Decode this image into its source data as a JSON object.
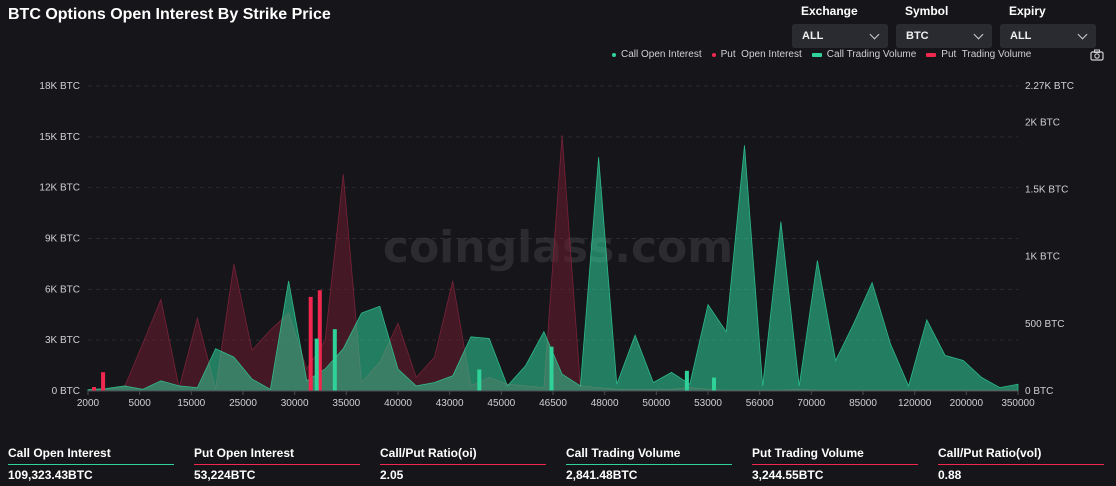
{
  "page": {
    "title": "BTC Options Open Interest By Strike Price",
    "watermark": "coinglass.com"
  },
  "filters": [
    {
      "label": "Exchange",
      "value": "ALL"
    },
    {
      "label": "Symbol",
      "value": "BTC"
    },
    {
      "label": "Expiry",
      "value": "ALL"
    }
  ],
  "legend": [
    {
      "label": "Call Open Interest",
      "color": "#2fd39a",
      "kind": "dot"
    },
    {
      "label": "Put  Open Interest",
      "color": "#f0284f",
      "kind": "dot"
    },
    {
      "label": "Call Trading Volume",
      "color": "#2fd39a",
      "kind": "bar"
    },
    {
      "label": "Put  Trading Volume",
      "color": "#f0284f",
      "kind": "bar"
    }
  ],
  "stats": [
    {
      "label": "Call Open Interest",
      "value": "109,323.43BTC",
      "color": "#2fd39a"
    },
    {
      "label": "Put Open Interest",
      "value": "53,224BTC",
      "color": "#f0284f"
    },
    {
      "label": "Call/Put Ratio(oi)",
      "value": "2.05",
      "color": "#f0284f"
    },
    {
      "label": "Call Trading Volume",
      "value": "2,841.48BTC",
      "color": "#2fd39a"
    },
    {
      "label": "Put Trading Volume",
      "value": "3,244.55BTC",
      "color": "#f0284f"
    },
    {
      "label": "Call/Put Ratio(vol)",
      "value": "0.88",
      "color": "#f0284f"
    }
  ],
  "chart_data": {
    "type": "bar",
    "x_tick_labels": [
      "2000",
      "5000",
      "15000",
      "25000",
      "30000",
      "35000",
      "40000",
      "43000",
      "45000",
      "46500",
      "48000",
      "50000",
      "53000",
      "56000",
      "70000",
      "85000",
      "120000",
      "200000",
      "350000"
    ],
    "y_left": {
      "ticks": [
        "0 BTC",
        "3K BTC",
        "6K BTC",
        "9K BTC",
        "12K BTC",
        "15K BTC",
        "18K BTC"
      ],
      "range": [
        0,
        18000
      ]
    },
    "y_right": {
      "ticks": [
        "0 BTC",
        "500 BTC",
        "1K BTC",
        "1.5K BTC",
        "2K BTC",
        "2.27K BTC"
      ],
      "range": [
        0,
        2270
      ]
    },
    "grid": true,
    "legend_position": "top-right",
    "series": [
      {
        "name": "Call Open Interest",
        "axis": "left",
        "color": "#2fd39a",
        "values": [
          80,
          150,
          300,
          100,
          600,
          300,
          200,
          2500,
          2000,
          700,
          100,
          6500,
          600,
          1300,
          2500,
          4600,
          5000,
          1300,
          300,
          500,
          900,
          3200,
          3100,
          300,
          1500,
          3500,
          1000,
          300,
          13800,
          400,
          3300,
          500,
          1100,
          400,
          5100,
          3500,
          14500,
          300,
          10000,
          300,
          7700,
          1800,
          4000,
          6400,
          2800,
          300,
          4200,
          2100,
          1800,
          800,
          200,
          400
        ]
      },
      {
        "name": "Put Open Interest",
        "axis": "left",
        "color": "#f0284f",
        "values": [
          50,
          100,
          250,
          2800,
          5400,
          200,
          4300,
          100,
          7500,
          2400,
          3600,
          4600,
          1300,
          3000,
          12800,
          500,
          1700,
          4000,
          800,
          2000,
          6500,
          300,
          800,
          400,
          300,
          200,
          15100,
          300,
          200,
          100,
          100,
          100,
          100,
          200,
          100,
          50,
          50,
          50,
          50,
          100,
          50,
          50,
          50,
          50,
          50,
          50,
          50,
          50,
          50,
          50,
          50,
          50
        ]
      },
      {
        "name": "Call Trading Volume",
        "axis": "right",
        "color": "#2fd39a",
        "values": [
          0,
          0,
          0,
          0,
          0,
          0,
          0,
          0,
          0,
          0,
          0,
          0,
          0,
          0,
          0,
          0,
          0,
          0,
          0,
          0,
          0,
          0,
          0,
          0,
          0,
          390,
          0,
          460,
          0,
          0,
          0,
          0,
          0,
          0,
          0,
          0,
          0,
          0,
          0,
          0,
          0,
          0,
          0,
          160,
          0,
          0,
          0,
          0,
          0,
          0,
          0,
          330,
          0,
          0,
          0,
          0,
          0,
          0,
          0,
          0,
          0,
          0,
          0,
          0,
          0,
          0,
          150,
          0,
          0,
          100,
          0,
          0,
          0,
          0,
          0,
          0,
          0,
          0,
          0,
          0,
          0,
          0,
          0,
          0,
          0,
          0,
          0,
          0,
          0,
          0,
          0,
          0,
          0,
          0,
          0,
          0,
          0,
          0,
          0,
          0,
          0,
          0,
          0,
          0
        ]
      },
      {
        "name": "Put Trading Volume",
        "axis": "right",
        "color": "#f0284f",
        "values": [
          0,
          30,
          140,
          0,
          0,
          0,
          0,
          0,
          0,
          0,
          0,
          0,
          0,
          0,
          0,
          0,
          0,
          0,
          0,
          0,
          0,
          0,
          0,
          0,
          0,
          700,
          750,
          0,
          0,
          0,
          0,
          0,
          0,
          0,
          0,
          0,
          0,
          0,
          0,
          0,
          0,
          0,
          0,
          0,
          0,
          0,
          0,
          0,
          0,
          0,
          0,
          0,
          0,
          0,
          0,
          0,
          0,
          0,
          0,
          0,
          0,
          0,
          0,
          0,
          0,
          0,
          0,
          0,
          0,
          0,
          0,
          0,
          0,
          0,
          0,
          0,
          0,
          0,
          0,
          0,
          0,
          0,
          0,
          0,
          0,
          0,
          0,
          0,
          0,
          0,
          0,
          0,
          0,
          0,
          0,
          0,
          0,
          0,
          0,
          0,
          0,
          0,
          0,
          0
        ]
      }
    ]
  }
}
